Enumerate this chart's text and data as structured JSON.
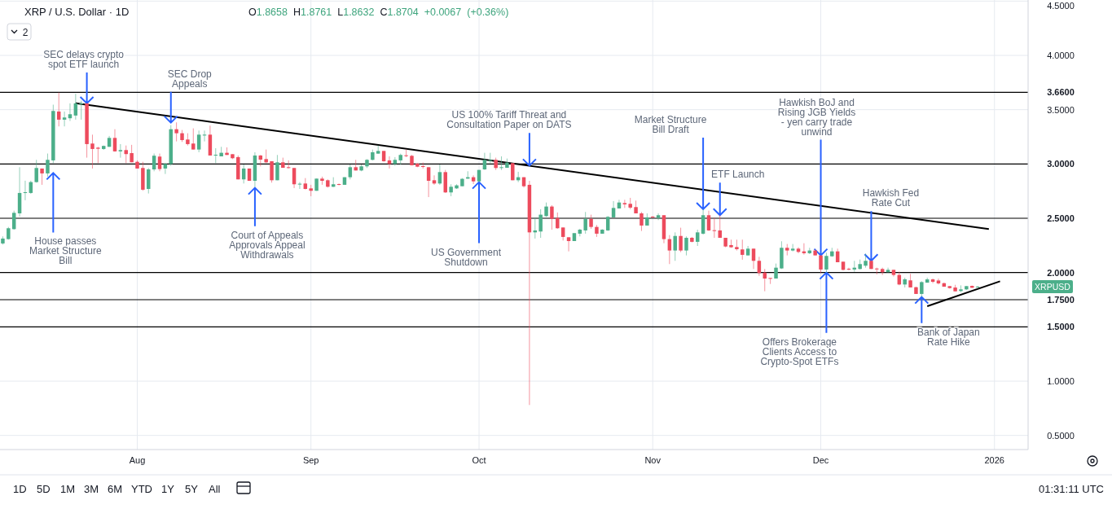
{
  "chart_data": {
    "type": "candlestick",
    "title": "XRP / U.S. Dollar · 1D",
    "x": [
      "2025-07-08",
      "2025-07-09",
      "2025-07-10",
      "2025-07-11",
      "2025-07-12",
      "2025-07-13",
      "2025-07-14",
      "2025-07-15",
      "2025-07-16",
      "2025-07-17",
      "2025-07-18",
      "2025-07-19",
      "2025-07-20",
      "2025-07-21",
      "2025-07-22",
      "2025-07-23",
      "2025-07-24",
      "2025-07-25",
      "2025-07-26",
      "2025-07-27",
      "2025-07-28",
      "2025-07-29",
      "2025-07-30",
      "2025-07-31",
      "2025-08-01",
      "2025-08-02",
      "2025-08-03",
      "2025-08-04",
      "2025-08-05",
      "2025-08-06",
      "2025-08-07",
      "2025-08-08",
      "2025-08-09",
      "2025-08-10",
      "2025-08-11",
      "2025-08-12",
      "2025-08-13",
      "2025-08-14",
      "2025-08-15",
      "2025-08-16",
      "2025-08-17",
      "2025-08-18",
      "2025-08-19",
      "2025-08-20",
      "2025-08-21",
      "2025-08-22",
      "2025-08-23",
      "2025-08-24",
      "2025-08-25",
      "2025-08-26",
      "2025-08-27",
      "2025-08-28",
      "2025-08-29",
      "2025-08-30",
      "2025-08-31",
      "2025-09-01",
      "2025-09-02",
      "2025-09-03",
      "2025-09-04",
      "2025-09-05",
      "2025-09-06",
      "2025-09-07",
      "2025-09-08",
      "2025-09-09",
      "2025-09-10",
      "2025-09-11",
      "2025-09-12",
      "2025-09-13",
      "2025-09-14",
      "2025-09-15",
      "2025-09-16",
      "2025-09-17",
      "2025-09-18",
      "2025-09-19",
      "2025-09-20",
      "2025-09-21",
      "2025-09-22",
      "2025-09-23",
      "2025-09-24",
      "2025-09-25",
      "2025-09-26",
      "2025-09-27",
      "2025-09-28",
      "2025-09-29",
      "2025-09-30",
      "2025-10-01",
      "2025-10-02",
      "2025-10-03",
      "2025-10-04",
      "2025-10-05",
      "2025-10-06",
      "2025-10-07",
      "2025-10-08",
      "2025-10-09",
      "2025-10-10",
      "2025-10-11",
      "2025-10-12",
      "2025-10-13",
      "2025-10-14",
      "2025-10-15",
      "2025-10-16",
      "2025-10-17",
      "2025-10-18",
      "2025-10-19",
      "2025-10-20",
      "2025-10-21",
      "2025-10-22",
      "2025-10-23",
      "2025-10-24",
      "2025-10-25",
      "2025-10-26",
      "2025-10-27",
      "2025-10-28",
      "2025-10-29",
      "2025-10-30",
      "2025-10-31",
      "2025-11-01",
      "2025-11-02",
      "2025-11-03",
      "2025-11-04",
      "2025-11-05",
      "2025-11-06",
      "2025-11-07",
      "2025-11-08",
      "2025-11-09",
      "2025-11-10",
      "2025-11-11",
      "2025-11-12",
      "2025-11-13",
      "2025-11-14",
      "2025-11-15",
      "2025-11-16",
      "2025-11-17",
      "2025-11-18",
      "2025-11-19",
      "2025-11-20",
      "2025-11-21",
      "2025-11-22",
      "2025-11-23",
      "2025-11-24",
      "2025-11-25",
      "2025-11-26",
      "2025-11-27",
      "2025-11-28",
      "2025-11-29",
      "2025-11-30",
      "2025-12-01",
      "2025-12-02",
      "2025-12-03",
      "2025-12-04",
      "2025-12-05",
      "2025-12-06",
      "2025-12-07",
      "2025-12-08",
      "2025-12-09",
      "2025-12-10",
      "2025-12-11",
      "2025-12-12",
      "2025-12-13",
      "2025-12-14",
      "2025-12-15",
      "2025-12-16",
      "2025-12-17",
      "2025-12-18",
      "2025-12-19",
      "2025-12-20",
      "2025-12-21",
      "2025-12-22",
      "2025-12-23",
      "2025-12-24",
      "2025-12-25",
      "2025-12-26",
      "2025-12-27",
      "2025-12-28",
      "2025-12-29"
    ],
    "ohlc": [
      [
        2.268,
        2.333,
        2.258,
        2.313
      ],
      [
        2.308,
        2.42,
        2.303,
        2.408
      ],
      [
        2.4,
        2.57,
        2.395,
        2.55
      ],
      [
        2.545,
        2.97,
        2.516,
        2.733
      ],
      [
        2.733,
        2.846,
        2.666,
        2.74
      ],
      [
        2.733,
        2.846,
        2.725,
        2.833
      ],
      [
        2.833,
        3.038,
        2.828,
        2.963
      ],
      [
        2.958,
        2.958,
        2.808,
        2.913
      ],
      [
        2.913,
        3.096,
        2.883,
        3.038
      ],
      [
        3.033,
        3.546,
        3.008,
        3.488
      ],
      [
        3.483,
        3.658,
        3.346,
        3.408
      ],
      [
        3.408,
        3.483,
        3.346,
        3.428
      ],
      [
        3.421,
        3.558,
        3.396,
        3.458
      ],
      [
        3.446,
        3.646,
        3.408,
        3.558
      ],
      [
        3.555,
        3.583,
        3.408,
        3.558
      ],
      [
        3.558,
        3.558,
        3.058,
        3.183
      ],
      [
        3.188,
        3.27,
        2.958,
        3.138
      ],
      [
        3.15,
        3.158,
        3.008,
        3.14
      ],
      [
        3.138,
        3.17,
        3.13,
        3.166
      ],
      [
        3.158,
        3.258,
        3.158,
        3.24
      ],
      [
        3.24,
        3.32,
        3.113,
        3.116
      ],
      [
        3.116,
        3.183,
        3.058,
        3.128
      ],
      [
        3.128,
        3.17,
        3.008,
        3.091
      ],
      [
        3.1,
        3.176,
        3.016,
        3.016
      ],
      [
        3.02,
        3.033,
        2.958,
        2.958
      ],
      [
        2.963,
        3.02,
        2.753,
        2.763
      ],
      [
        2.77,
        2.963,
        2.728,
        2.95
      ],
      [
        2.95,
        3.096,
        2.933,
        3.076
      ],
      [
        3.068,
        3.096,
        2.933,
        2.953
      ],
      [
        2.958,
        3.008,
        2.908,
        3.0
      ],
      [
        3.0,
        3.358,
        2.983,
        3.32
      ],
      [
        3.32,
        3.383,
        3.208,
        3.283
      ],
      [
        3.283,
        3.313,
        3.203,
        3.22
      ],
      [
        3.225,
        3.283,
        3.17,
        3.183
      ],
      [
        3.188,
        3.328,
        3.133,
        3.133
      ],
      [
        3.133,
        3.308,
        3.108,
        3.27
      ],
      [
        3.262,
        3.308,
        3.208,
        3.27
      ],
      [
        3.27,
        3.353,
        3.078,
        3.078
      ],
      [
        3.078,
        3.145,
        3.008,
        3.085
      ],
      [
        3.07,
        3.158,
        3.07,
        3.103
      ],
      [
        3.103,
        3.153,
        3.083,
        3.083
      ],
      [
        3.09,
        3.09,
        3.045,
        3.053
      ],
      [
        3.063,
        3.078,
        2.858,
        2.858
      ],
      [
        2.858,
        2.995,
        2.82,
        2.958
      ],
      [
        2.958,
        2.958,
        2.845,
        2.845
      ],
      [
        2.845,
        3.108,
        2.788,
        3.078
      ],
      [
        3.078,
        3.083,
        2.978,
        3.04
      ],
      [
        3.045,
        3.133,
        3.008,
        3.015
      ],
      [
        3.025,
        3.025,
        2.828,
        2.85
      ],
      [
        2.85,
        3.083,
        2.85,
        3.015
      ],
      [
        3.015,
        3.058,
        2.965,
        2.965
      ],
      [
        2.97,
        3.033,
        2.958,
        2.965
      ],
      [
        2.963,
        2.963,
        2.778,
        2.813
      ],
      [
        2.813,
        2.833,
        2.77,
        2.818
      ],
      [
        2.82,
        2.87,
        2.765,
        2.77
      ],
      [
        2.775,
        2.808,
        2.703,
        2.753
      ],
      [
        2.753,
        2.865,
        2.753,
        2.865
      ],
      [
        2.865,
        2.883,
        2.808,
        2.845
      ],
      [
        2.85,
        2.858,
        2.783,
        2.79
      ],
      [
        2.79,
        2.878,
        2.788,
        2.813
      ],
      [
        2.815,
        2.82,
        2.803,
        2.81
      ],
      [
        2.808,
        2.878,
        2.808,
        2.878
      ],
      [
        2.878,
        2.995,
        2.858,
        2.97
      ],
      [
        2.97,
        3.038,
        2.94,
        2.94
      ],
      [
        2.94,
        2.995,
        2.933,
        2.978
      ],
      [
        2.978,
        3.045,
        2.963,
        3.038
      ],
      [
        3.038,
        3.133,
        3.033,
        3.108
      ],
      [
        3.095,
        3.17,
        3.095,
        3.12
      ],
      [
        3.12,
        3.12,
        3.02,
        3.025
      ],
      [
        3.033,
        3.07,
        2.958,
        3.0
      ],
      [
        3.0,
        3.063,
        2.983,
        3.038
      ],
      [
        3.033,
        3.095,
        2.995,
        3.083
      ],
      [
        3.08,
        3.133,
        3.063,
        3.075
      ],
      [
        3.075,
        3.083,
        2.988,
        2.988
      ],
      [
        3.003,
        3.008,
        2.97,
        2.975
      ],
      [
        2.98,
        3.013,
        2.958,
        2.975
      ],
      [
        2.97,
        2.97,
        2.695,
        2.845
      ],
      [
        2.85,
        2.895,
        2.808,
        2.82
      ],
      [
        2.82,
        2.995,
        2.808,
        2.925
      ],
      [
        2.925,
        2.945,
        2.733,
        2.738
      ],
      [
        2.738,
        2.813,
        2.703,
        2.79
      ],
      [
        2.775,
        2.813,
        2.77,
        2.803
      ],
      [
        2.795,
        2.87,
        2.795,
        2.863
      ],
      [
        2.865,
        2.933,
        2.863,
        2.878
      ],
      [
        2.878,
        2.895,
        2.815,
        2.84
      ],
      [
        2.84,
        2.945,
        2.833,
        2.945
      ],
      [
        2.95,
        3.103,
        2.945,
        3.038
      ],
      [
        3.03,
        3.103,
        3.008,
        3.036
      ],
      [
        3.038,
        3.058,
        2.945,
        2.963
      ],
      [
        2.968,
        3.07,
        2.945,
        2.97
      ],
      [
        2.965,
        3.05,
        2.965,
        3.013
      ],
      [
        3.008,
        3.008,
        2.85,
        2.85
      ],
      [
        2.85,
        2.928,
        2.833,
        2.878
      ],
      [
        2.878,
        2.878,
        2.783,
        2.795
      ],
      [
        2.808,
        2.845,
        0.78,
        2.37
      ],
      [
        2.37,
        2.508,
        2.313,
        2.388
      ],
      [
        2.378,
        2.583,
        2.32,
        2.533
      ],
      [
        2.52,
        2.645,
        2.513,
        2.608
      ],
      [
        2.608,
        2.62,
        2.395,
        2.495
      ],
      [
        2.503,
        2.553,
        2.403,
        2.408
      ],
      [
        2.415,
        2.415,
        2.295,
        2.328
      ],
      [
        2.325,
        2.325,
        2.195,
        2.29
      ],
      [
        2.29,
        2.363,
        2.29,
        2.363
      ],
      [
        2.358,
        2.403,
        2.333,
        2.395
      ],
      [
        2.388,
        2.558,
        2.358,
        2.495
      ],
      [
        2.495,
        2.533,
        2.403,
        2.42
      ],
      [
        2.42,
        2.438,
        2.328,
        2.358
      ],
      [
        2.358,
        2.4,
        2.358,
        2.395
      ],
      [
        2.388,
        2.52,
        2.383,
        2.513
      ],
      [
        2.508,
        2.658,
        2.508,
        2.595
      ],
      [
        2.59,
        2.67,
        2.59,
        2.645
      ],
      [
        2.64,
        2.67,
        2.595,
        2.628
      ],
      [
        2.633,
        2.688,
        2.583,
        2.598
      ],
      [
        2.603,
        2.663,
        2.545,
        2.545
      ],
      [
        2.545,
        2.558,
        2.383,
        2.433
      ],
      [
        2.433,
        2.545,
        2.433,
        2.508
      ],
      [
        2.515,
        2.52,
        2.503,
        2.51
      ],
      [
        2.503,
        2.545,
        2.483,
        2.528
      ],
      [
        2.528,
        2.528,
        2.27,
        2.308
      ],
      [
        2.308,
        2.345,
        2.078,
        2.203
      ],
      [
        2.203,
        2.37,
        2.108,
        2.337
      ],
      [
        2.337,
        2.413,
        2.188,
        2.203
      ],
      [
        2.203,
        2.333,
        2.158,
        2.32
      ],
      [
        2.32,
        2.328,
        2.278,
        2.283
      ],
      [
        2.283,
        2.395,
        2.245,
        2.37
      ],
      [
        2.358,
        2.583,
        2.35,
        2.528
      ],
      [
        2.528,
        2.57,
        2.383,
        2.388
      ],
      [
        2.39,
        2.508,
        2.32,
        2.385
      ],
      [
        2.388,
        2.528,
        2.32,
        2.32
      ],
      [
        2.32,
        2.32,
        2.233,
        2.24
      ],
      [
        2.253,
        2.303,
        2.228,
        2.233
      ],
      [
        2.235,
        2.303,
        2.203,
        2.215
      ],
      [
        2.213,
        2.303,
        2.118,
        2.163
      ],
      [
        2.158,
        2.245,
        2.158,
        2.22
      ],
      [
        2.22,
        2.22,
        2.033,
        2.108
      ],
      [
        2.108,
        2.145,
        1.97,
        1.995
      ],
      [
        2.0,
        2.033,
        1.828,
        1.945
      ],
      [
        1.95,
        1.95,
        1.895,
        1.947
      ],
      [
        1.945,
        2.083,
        1.945,
        2.045
      ],
      [
        2.038,
        2.288,
        2.033,
        2.228
      ],
      [
        2.228,
        2.263,
        2.158,
        2.203
      ],
      [
        2.203,
        2.263,
        2.195,
        2.22
      ],
      [
        2.22,
        2.233,
        2.178,
        2.19
      ],
      [
        2.195,
        2.27,
        2.165,
        2.178
      ],
      [
        2.178,
        2.228,
        2.17,
        2.203
      ],
      [
        2.203,
        2.213,
        2.158,
        2.158
      ],
      [
        2.158,
        2.158,
        1.995,
        2.028
      ],
      [
        2.028,
        2.183,
        2.0,
        2.153
      ],
      [
        2.15,
        2.228,
        2.145,
        2.195
      ],
      [
        2.195,
        2.22,
        2.095,
        2.095
      ],
      [
        2.1,
        2.1,
        2.02,
        2.025
      ],
      [
        2.035,
        2.045,
        2.02,
        2.03
      ],
      [
        2.028,
        2.108,
        2.008,
        2.045
      ],
      [
        2.033,
        2.12,
        2.028,
        2.078
      ],
      [
        2.063,
        2.175,
        2.045,
        2.108
      ],
      [
        2.108,
        2.108,
        2.033,
        2.033
      ],
      [
        2.037,
        2.045,
        1.983,
        2.033
      ],
      [
        2.033,
        2.045,
        1.978,
        2.003
      ],
      [
        2.003,
        2.045,
        2.003,
        2.025
      ],
      [
        2.025,
        2.025,
        1.963,
        1.978
      ],
      [
        1.978,
        2.008,
        1.883,
        1.89
      ],
      [
        1.89,
        1.953,
        1.863,
        1.938
      ],
      [
        1.928,
        1.988,
        1.863,
        1.863
      ],
      [
        1.865,
        1.87,
        1.803,
        1.803
      ],
      [
        1.803,
        1.92,
        1.775,
        1.912
      ],
      [
        1.907,
        1.953,
        1.907,
        1.937
      ],
      [
        1.937,
        1.945,
        1.902,
        1.915
      ],
      [
        1.927,
        1.945,
        1.89,
        1.9
      ],
      [
        1.902,
        1.908,
        1.87,
        1.87
      ],
      [
        1.875,
        1.875,
        1.852,
        1.857
      ],
      [
        1.862,
        1.887,
        1.827,
        1.827
      ],
      [
        1.83,
        1.882,
        1.82,
        1.845
      ],
      [
        1.845,
        1.877,
        1.84,
        1.875
      ],
      [
        1.877,
        1.88,
        1.86,
        1.86
      ],
      [
        1.8658,
        1.8761,
        1.8632,
        1.8704
      ]
    ],
    "colors": [
      "#4caf8a",
      "#4caf8a",
      "#4caf8a",
      "#4caf8a",
      "#4caf8a",
      "#4caf8a",
      "#4caf8a",
      "#ed4b5d",
      "#4caf8a",
      "#4caf8a",
      "#ed4b5d",
      "#4caf8a",
      "#4caf8a",
      "#4caf8a",
      "#4caf8a",
      "#ed4b5d",
      "#ed4b5d",
      "#ed4b5d",
      "#4caf8a",
      "#4caf8a",
      "#ed4b5d",
      "#4caf8a",
      "#ed4b5d",
      "#ed4b5d",
      "#ed4b5d",
      "#ed4b5d",
      "#4caf8a",
      "#4caf8a",
      "#ed4b5d",
      "#4caf8a",
      "#4caf8a",
      "#ed4b5d",
      "#ed4b5d",
      "#ed4b5d",
      "#ed4b5d",
      "#4caf8a",
      "#4caf8a",
      "#ed4b5d",
      "#4caf8a",
      "#4caf8a",
      "#ed4b5d",
      "#ed4b5d",
      "#ed4b5d",
      "#4caf8a",
      "#ed4b5d",
      "#4caf8a",
      "#ed4b5d",
      "#ed4b5d",
      "#ed4b5d",
      "#4caf8a",
      "#ed4b5d",
      "#ed4b5d",
      "#ed4b5d",
      "#4caf8a",
      "#ed4b5d",
      "#ed4b5d",
      "#4caf8a",
      "#ed4b5d",
      "#ed4b5d",
      "#4caf8a",
      "#ed4b5d",
      "#4caf8a",
      "#4caf8a",
      "#ed4b5d",
      "#4caf8a",
      "#4caf8a",
      "#4caf8a",
      "#4caf8a",
      "#ed4b5d",
      "#ed4b5d",
      "#4caf8a",
      "#4caf8a",
      "#ed4b5d",
      "#ed4b5d",
      "#ed4b5d",
      "#ed4b5d",
      "#ed4b5d",
      "#ed4b5d",
      "#4caf8a",
      "#ed4b5d",
      "#4caf8a",
      "#4caf8a",
      "#4caf8a",
      "#4caf8a",
      "#ed4b5d",
      "#4caf8a",
      "#4caf8a",
      "#4caf8a",
      "#ed4b5d",
      "#4caf8a",
      "#4caf8a",
      "#ed4b5d",
      "#4caf8a",
      "#ed4b5d",
      "#ed4b5d",
      "#4caf8a",
      "#4caf8a",
      "#4caf8a",
      "#ed4b5d",
      "#ed4b5d",
      "#ed4b5d",
      "#ed4b5d",
      "#4caf8a",
      "#4caf8a",
      "#4caf8a",
      "#ed4b5d",
      "#ed4b5d",
      "#4caf8a",
      "#4caf8a",
      "#4caf8a",
      "#4caf8a",
      "#ed4b5d",
      "#ed4b5d",
      "#ed4b5d",
      "#ed4b5d",
      "#4caf8a",
      "#ed4b5d",
      "#4caf8a",
      "#ed4b5d",
      "#ed4b5d",
      "#4caf8a",
      "#ed4b5d",
      "#4caf8a",
      "#ed4b5d",
      "#4caf8a",
      "#4caf8a",
      "#ed4b5d",
      "#ed4b5d",
      "#ed4b5d",
      "#ed4b5d",
      "#ed4b5d",
      "#ed4b5d",
      "#ed4b5d",
      "#4caf8a",
      "#ed4b5d",
      "#ed4b5d",
      "#ed4b5d",
      "#ed4b5d",
      "#4caf8a",
      "#4caf8a",
      "#ed4b5d",
      "#4caf8a",
      "#ed4b5d",
      "#ed4b5d",
      "#4caf8a",
      "#ed4b5d",
      "#ed4b5d",
      "#4caf8a",
      "#4caf8a",
      "#ed4b5d",
      "#ed4b5d",
      "#ed4b5d",
      "#4caf8a",
      "#4caf8a",
      "#4caf8a",
      "#ed4b5d",
      "#ed4b5d",
      "#ed4b5d",
      "#4caf8a",
      "#ed4b5d",
      "#ed4b5d",
      "#4caf8a",
      "#ed4b5d",
      "#ed4b5d",
      "#4caf8a",
      "#4caf8a",
      "#ed4b5d",
      "#ed4b5d",
      "#ed4b5d",
      "#ed4b5d",
      "#ed4b5d",
      "#4caf8a",
      "#4caf8a",
      "#ed4b5d",
      "#4caf8a"
    ],
    "series": [
      {
        "type": "line",
        "x": [
          "2025-07-21",
          "2025-12-31"
        ],
        "values": [
          3.56,
          2.4
        ],
        "color": "#000000"
      },
      {
        "type": "line",
        "x": [
          "2025-12-20",
          "2026-01-02"
        ],
        "values": [
          1.69,
          1.92
        ],
        "color": "#000000"
      }
    ],
    "xlim": [
      "2025-07-07T12:00",
      "2026-01-07"
    ],
    "xticks": [
      {
        "value": "2025-08-01",
        "label": "Aug"
      },
      {
        "value": "2025-09-01",
        "label": "Sep"
      },
      {
        "value": "2025-10-01",
        "label": "Oct"
      },
      {
        "value": "2025-11-01",
        "label": "Nov"
      },
      {
        "value": "2025-12-01",
        "label": "Dec"
      },
      {
        "value": "2026-01-01",
        "label": "2026"
      }
    ],
    "ylim": [
      0.37,
      4.51
    ],
    "yticks": [
      {
        "value": 0.5,
        "label": "0.5000"
      },
      {
        "value": 1.0,
        "label": "1.0000"
      },
      {
        "value": 3.5,
        "label": "3.5000"
      },
      {
        "value": 4.0,
        "label": "4.0000"
      },
      {
        "value": 4.5,
        "label": "4.5000"
      }
    ],
    "grid": true,
    "ref_lines": [
      {
        "axis": "y",
        "value": 3.66,
        "label": "3.6600",
        "color": "#000000"
      },
      {
        "axis": "y",
        "value": 3.0,
        "label": "3.0000",
        "color": "#000000"
      },
      {
        "axis": "y",
        "value": 2.5,
        "label": "2.5000",
        "color": "#000000"
      },
      {
        "axis": "y",
        "value": 2.0,
        "label": "2.0000",
        "color": "#000000"
      },
      {
        "axis": "y",
        "value": 1.75,
        "label": "1.7500",
        "color": "#000000"
      },
      {
        "axis": "y",
        "value": 1.5,
        "label": "1.5000",
        "color": "#000000"
      }
    ],
    "annotations": [
      {
        "text": "SEC delays crypto spot ETF launch",
        "x": "2025-07-23",
        "y": 3.558
      },
      {
        "text": "SEC Drop Appeals",
        "x": "2025-08-07",
        "y": 3.38
      },
      {
        "text": "US 100% Tariff Threat and Consultation Paper on DATS",
        "x": "2025-10-10",
        "y": 2.985
      },
      {
        "text": "Market Structure Bill Draft",
        "x": "2025-11-10",
        "y": 2.583
      },
      {
        "text": "ETF Launch",
        "x": "2025-11-13",
        "y": 2.528
      },
      {
        "text": "Hawkish BoJ and Rising JGB Yields - yen carry trade unwind",
        "x": "2025-12-01",
        "y": 2.158
      },
      {
        "text": "Hawkish Fed Rate Cut",
        "x": "2025-12-10",
        "y": 2.108
      },
      {
        "text": "House passes Market Structure Bill",
        "x": "2025-07-17",
        "y": 2.917
      },
      {
        "text": "Court of Appeals Approvals Appeal Withdrawals",
        "x": "2025-08-22",
        "y": 2.78
      },
      {
        "text": "US Government Shutdown",
        "x": "2025-10-01",
        "y": 2.833
      },
      {
        "text": "Offers Brokerage Clients Access to Crypto-Spot ETFs",
        "x": "2025-12-02",
        "y": 2.0
      },
      {
        "text": "Bank of Japan Rate Hike",
        "x": "2025-12-19",
        "y": 1.775
      },
      "O1.8658 H1.8761 L1.8632 C1.8704 +0.0067 (+0.36%)",
      "XRPUSD",
      "2",
      "1D 5D 1M 3M 6M YTD 1Y 5Y All",
      "01:31:11 UTC"
    ]
  }
}
